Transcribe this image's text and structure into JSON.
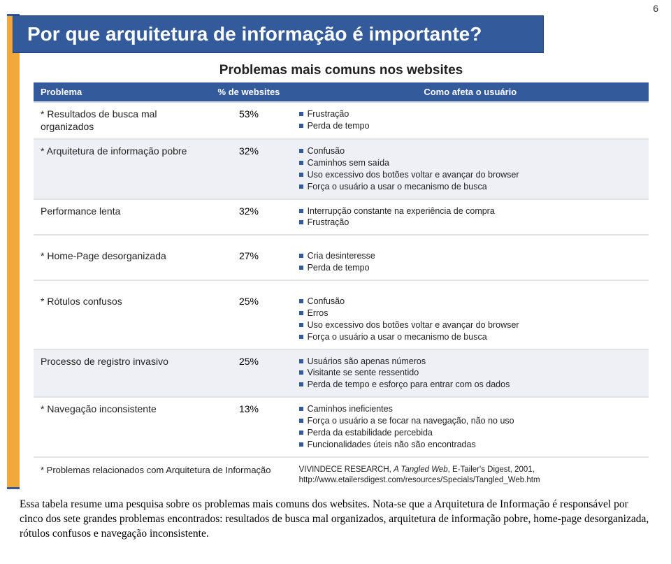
{
  "page_number": "6",
  "title": "Por que arquitetura de informação é importante?",
  "subtitle": "Problemas mais comuns nos websites",
  "colors": {
    "brand_blue": "#335a9a",
    "accent_orange": "#f2a93b",
    "row_alt": "#eef0f6",
    "text": "#222222",
    "bullet": "#335a9a"
  },
  "table": {
    "headers": {
      "problem": "Problema",
      "percent": "% de websites",
      "effect": "Como afeta o usuário"
    },
    "groups": [
      [
        {
          "problem": "* Resultados de busca mal organizados",
          "percent": "53%",
          "effects": [
            "Frustração",
            "Perda de tempo"
          ]
        },
        {
          "problem": "* Arquitetura de informação pobre",
          "percent": "32%",
          "effects": [
            "Confusão",
            "Caminhos sem saída",
            "Uso excessivo dos botões voltar e avançar do browser",
            "Força o usuário a usar o mecanismo de busca"
          ]
        },
        {
          "problem": "Performance lenta",
          "percent": "32%",
          "effects": [
            "Interrupção constante na experiência de compra",
            "Frustração"
          ]
        }
      ],
      [
        {
          "problem": "* Home-Page desorganizada",
          "percent": "27%",
          "effects": [
            "Cria desinteresse",
            "Perda de tempo"
          ]
        }
      ],
      [
        {
          "problem": "* Rótulos confusos",
          "percent": "25%",
          "effects": [
            "Confusão",
            "Erros",
            "Uso excessivo dos botões voltar e avançar do browser",
            "Força o usuário a usar o mecanismo de busca"
          ]
        },
        {
          "problem": "Processo de registro invasivo",
          "percent": "25%",
          "effects": [
            "Usuários são apenas números",
            "Visitante se sente ressentido",
            "Perda de tempo e esforço para entrar com os dados"
          ]
        },
        {
          "problem": "* Navegação inconsistente",
          "percent": "13%",
          "effects": [
            "Caminhos ineficientes",
            "Força o usuário a se focar na navegação, não no uso",
            "Perda da estabilidade percebida",
            "Funcionalidades úteis não são encontradas"
          ]
        }
      ]
    ]
  },
  "footnote": "* Problemas relacionados com Arquitetura de Informação",
  "citation": {
    "source": "VIVINDECE RESEARCH, ",
    "title_italic": "A Tangled Web",
    "tail": ", E-Tailer's Digest, 2001,",
    "url": "http://www.etailersdigest.com/resources/Specials/Tangled_Web.htm"
  },
  "summary": "Essa tabela resume uma pesquisa sobre os problemas mais comuns dos websites. Nota-se que a Arquitetura de Informação é responsável por cinco dos sete grandes problemas encontrados: resultados de busca mal organizados, arquitetura de informação pobre, home-page desorganizada, rótulos confusos e navegação inconsistente."
}
